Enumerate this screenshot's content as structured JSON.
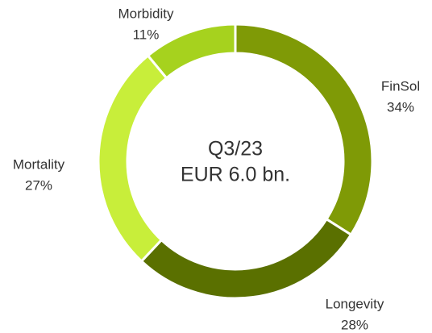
{
  "chart_data": {
    "type": "donut",
    "center_label": [
      "Q3/23",
      "EUR 6.0 bn."
    ],
    "categories": [
      "FinSol",
      "Longevity",
      "Mortality",
      "Morbidity"
    ],
    "values": [
      34,
      28,
      27,
      11
    ],
    "value_labels": [
      "34%",
      "28%",
      "27%",
      "11%"
    ],
    "colors": [
      "#7f9a06",
      "#5a7000",
      "#c8ee3a",
      "#a6d21e"
    ]
  }
}
